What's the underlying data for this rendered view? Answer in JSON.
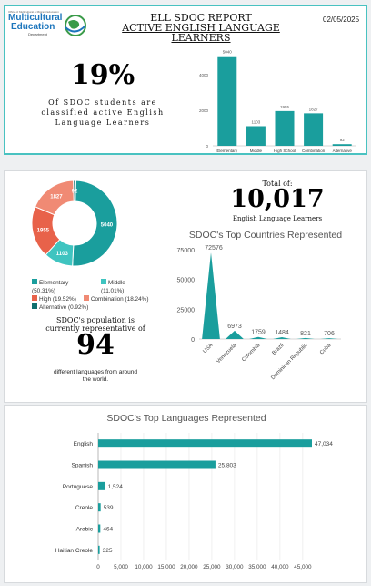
{
  "header": {
    "logo_top": "Office of Multicultural & Migrant Education",
    "logo_main_1": "Multicultural",
    "logo_main_2": "Education",
    "logo_sub": "Department",
    "title_line1": "ELL SDOC REPORT",
    "title_line2": "ACTIVE ENGLISH LANGUAGE LEARNERS",
    "date": "02/05/2025"
  },
  "summary": {
    "percent": "19%",
    "caption": "Of SDOC students are classified active English Language Learners",
    "total_label": "Total of:",
    "total_value": "10,017",
    "total_sub": "English Language Learners",
    "population_text": "SDOC's population is currently representative of",
    "languages_count": "94",
    "languages_text": "different languages from around the world."
  },
  "colors": {
    "teal": "#1a9e9d",
    "teal_light": "#3fc4c0",
    "orange": "#e8624a",
    "salmon": "#f08a74",
    "dark_teal": "#10706f",
    "border": "#49c2c1"
  },
  "chart_data": [
    {
      "type": "bar",
      "categories": [
        "Elementary",
        "Middle",
        "High School",
        "Combination",
        "Alternative"
      ],
      "values": [
        5040,
        1103,
        1955,
        1827,
        92
      ],
      "ylim": [
        0,
        6000
      ],
      "yticks": [
        0,
        2000,
        4000
      ],
      "value_labels": [
        "5040",
        "1103",
        "1955",
        "1827",
        "92"
      ],
      "tick_labels": [
        "0",
        "2000",
        "4000"
      ],
      "grid": false,
      "color": "#1a9e9d"
    },
    {
      "type": "pie",
      "labels": [
        "Elementary",
        "Middle",
        "High",
        "Combination",
        "Alternative"
      ],
      "values": [
        5040,
        1103,
        1955,
        1827,
        92
      ],
      "value_labels": [
        "5040",
        "1103",
        "1955",
        "1827",
        "92"
      ],
      "legend": [
        "Elementary (50.31%)",
        "Middle (11.01%)",
        "High (19.52%)",
        "Combination (18.24%)",
        "Alternative (0.92%)"
      ],
      "colors": [
        "#1a9e9d",
        "#3fc4c0",
        "#e8624a",
        "#f08a74",
        "#10706f"
      ],
      "legend_position": "bottom"
    },
    {
      "type": "area",
      "title": "SDOC's Top Countries Represented",
      "categories": [
        "USA",
        "Venezuela",
        "Colombia",
        "Brazil",
        "Dominican Republic",
        "Cuba"
      ],
      "values": [
        72576,
        6973,
        1759,
        1484,
        821,
        706
      ],
      "value_labels": [
        "72576",
        "6973",
        "1759",
        "1484",
        "821",
        "706"
      ],
      "ylim": [
        0,
        75000
      ],
      "yticks": [
        0,
        25000,
        50000,
        75000
      ],
      "tick_labels": [
        "0",
        "25000",
        "50000",
        "75000"
      ],
      "color": "#1a9e9d"
    },
    {
      "type": "bar",
      "orientation": "horizontal",
      "title": "SDOC's Top Languages Represented",
      "categories": [
        "English",
        "Spanish",
        "Portuguese",
        "Creole",
        "Arabic",
        "Haitian Creole"
      ],
      "values": [
        47034,
        25803,
        1524,
        539,
        464,
        325
      ],
      "value_labels": [
        "47,034",
        "25,803",
        "1,524",
        "539",
        "464",
        "325"
      ],
      "xlim": [
        0,
        47034
      ],
      "xticks": [
        0,
        5000,
        10000,
        15000,
        20000,
        25000,
        30000,
        35000,
        40000,
        45000
      ],
      "tick_labels": [
        "0",
        "5,000",
        "10,000",
        "15,000",
        "20,000",
        "25,000",
        "30,000",
        "35,000",
        "40,000",
        "45,000"
      ],
      "grid": true,
      "color": "#1a9e9d"
    }
  ]
}
